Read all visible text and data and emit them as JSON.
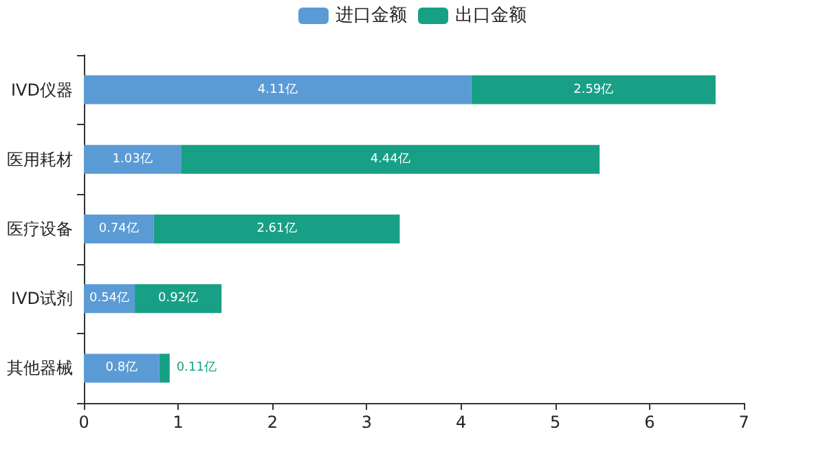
{
  "chart_data": {
    "type": "bar",
    "orientation": "horizontal",
    "stacked": true,
    "categories": [
      "IVD仪器",
      "医用耗材",
      "医疗设备",
      "IVD试剂",
      "其他器械"
    ],
    "series": [
      {
        "name": "进口金额",
        "color": "#5b9bd5",
        "values": [
          4.11,
          1.03,
          0.74,
          0.54,
          0.8
        ],
        "value_labels": [
          "4.11亿",
          "1.03亿",
          "0.74亿",
          "0.54亿",
          "0.8亿"
        ]
      },
      {
        "name": "出口金额",
        "color": "#17a085",
        "values": [
          2.59,
          4.44,
          2.61,
          0.92,
          0.11
        ],
        "value_labels": [
          "2.59亿",
          "4.44亿",
          "2.61亿",
          "0.92亿",
          "0.11亿"
        ]
      }
    ],
    "xlim": [
      0,
      7
    ],
    "xticks": [
      0,
      1,
      2,
      3,
      4,
      5,
      6,
      7
    ],
    "grid": false,
    "legend": "top"
  }
}
